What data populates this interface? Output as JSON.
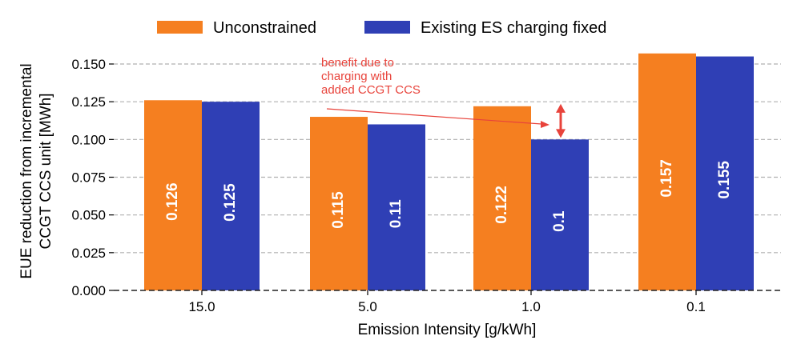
{
  "chart_data": {
    "type": "bar",
    "title": "",
    "xlabel": "Emission Intensity [g/kWh]",
    "ylabel_lines": [
      "EUE reduction from incremental",
      "CCGT CCS unit [MWh]"
    ],
    "categories": [
      "15.0",
      "5.0",
      "1.0",
      "0.1"
    ],
    "ylim": [
      0,
      0.16
    ],
    "yticks": [
      "0.000",
      "0.025",
      "0.050",
      "0.075",
      "0.100",
      "0.125",
      "0.150"
    ],
    "ytick_values": [
      0,
      0.025,
      0.05,
      0.075,
      0.1,
      0.125,
      0.15
    ],
    "grid": "horizontal dashed",
    "legend_position": "top-center",
    "series": [
      {
        "name": "Unconstrained",
        "color": "#f57f20",
        "values": [
          0.126,
          0.115,
          0.122,
          0.157
        ],
        "labels": [
          "0.126",
          "0.115",
          "0.122",
          "0.157"
        ]
      },
      {
        "name": "Existing ES charging fixed",
        "color": "#2f3fb5",
        "values": [
          0.125,
          0.11,
          0.1,
          0.155
        ],
        "labels": [
          "0.125",
          "0.11",
          "0.1",
          "0.155"
        ]
      }
    ],
    "annotation": {
      "lines": [
        "benefit due to",
        "charging with",
        "added CCGT CCS"
      ],
      "color": "#e8433b",
      "category": "1.0",
      "from_value": 0.1,
      "to_value": 0.122
    }
  }
}
